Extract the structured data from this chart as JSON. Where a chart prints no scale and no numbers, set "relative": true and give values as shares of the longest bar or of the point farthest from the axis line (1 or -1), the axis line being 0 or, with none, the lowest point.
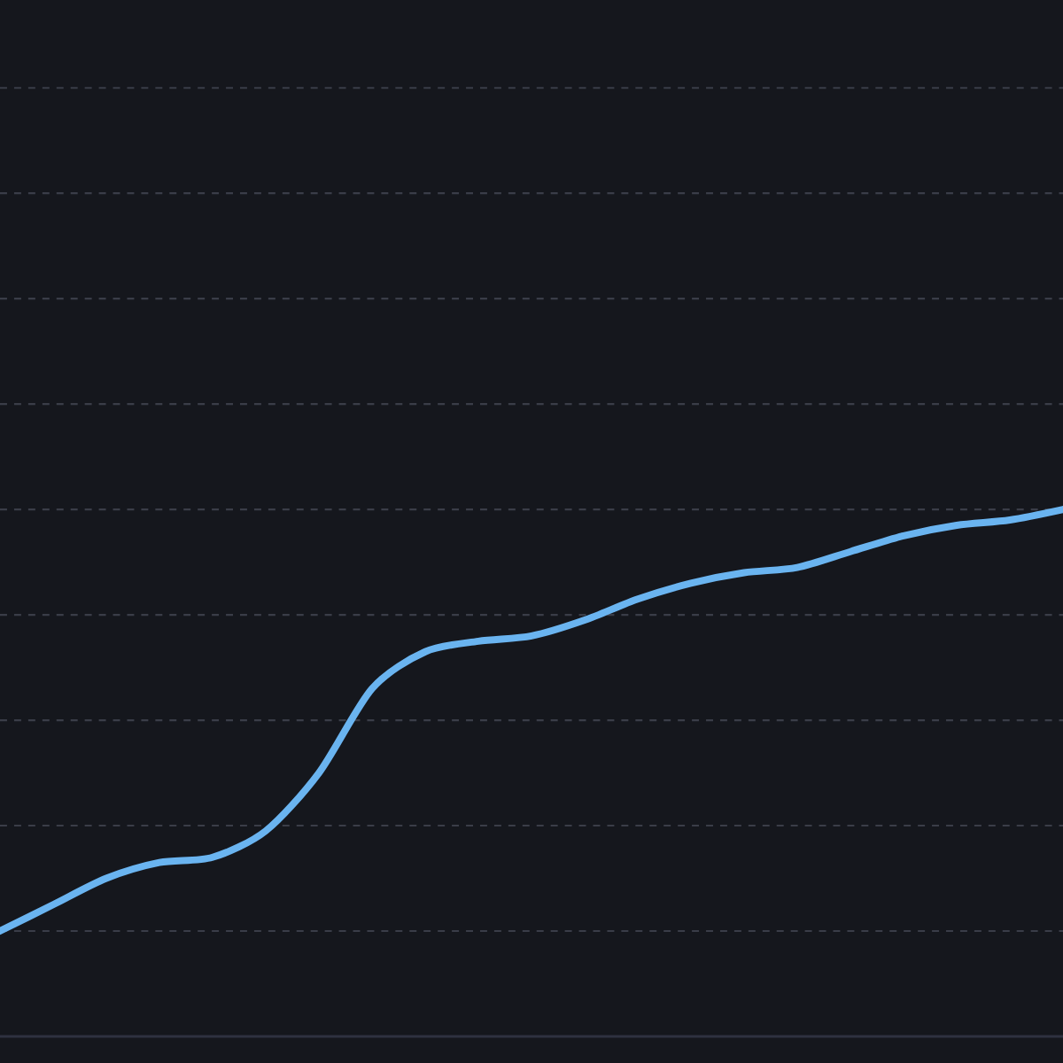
{
  "chart_data": {
    "type": "line",
    "relative": true,
    "grid": "y",
    "color": "#6ab4f0",
    "marker": "none",
    "line_style": "solid",
    "categories": [
      null,
      null,
      null,
      null,
      null,
      null,
      null,
      null,
      null,
      null,
      null,
      null,
      null,
      null,
      null,
      null,
      null,
      null,
      null,
      null,
      null
    ],
    "values": [
      0.2,
      0.25,
      0.3,
      0.33,
      0.34,
      0.39,
      0.5,
      0.66,
      0.73,
      0.75,
      0.76,
      0.79,
      0.83,
      0.86,
      0.88,
      0.89,
      0.92,
      0.95,
      0.97,
      0.98,
      1
    ]
  }
}
